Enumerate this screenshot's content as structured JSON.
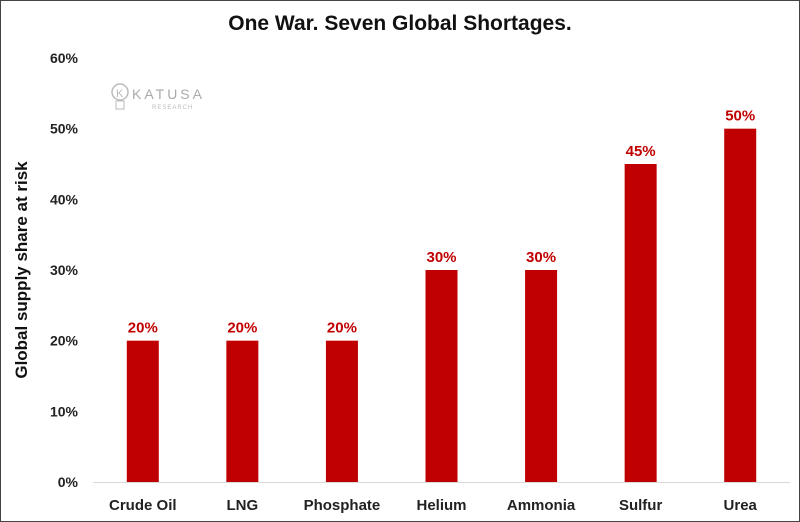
{
  "chart_data": {
    "type": "bar",
    "title": "One War. Seven Global Shortages.",
    "xlabel": "",
    "ylabel": "Global supply share at risk",
    "categories": [
      "Crude Oil",
      "LNG",
      "Phosphate",
      "Helium",
      "Ammonia",
      "Sulfur",
      "Urea"
    ],
    "values": [
      20,
      20,
      20,
      30,
      30,
      45,
      50
    ],
    "data_labels": [
      "20%",
      "20%",
      "20%",
      "30%",
      "30%",
      "45%",
      "50%"
    ],
    "ylim": [
      0,
      60
    ],
    "yticks": [
      "0%",
      "10%",
      "20%",
      "30%",
      "40%",
      "50%",
      "60%"
    ],
    "grid": false,
    "bar_color": "#c00000",
    "label_color": "#c00000"
  },
  "watermark": {
    "brand": "KATUSA",
    "sub": "RESEARCH"
  }
}
